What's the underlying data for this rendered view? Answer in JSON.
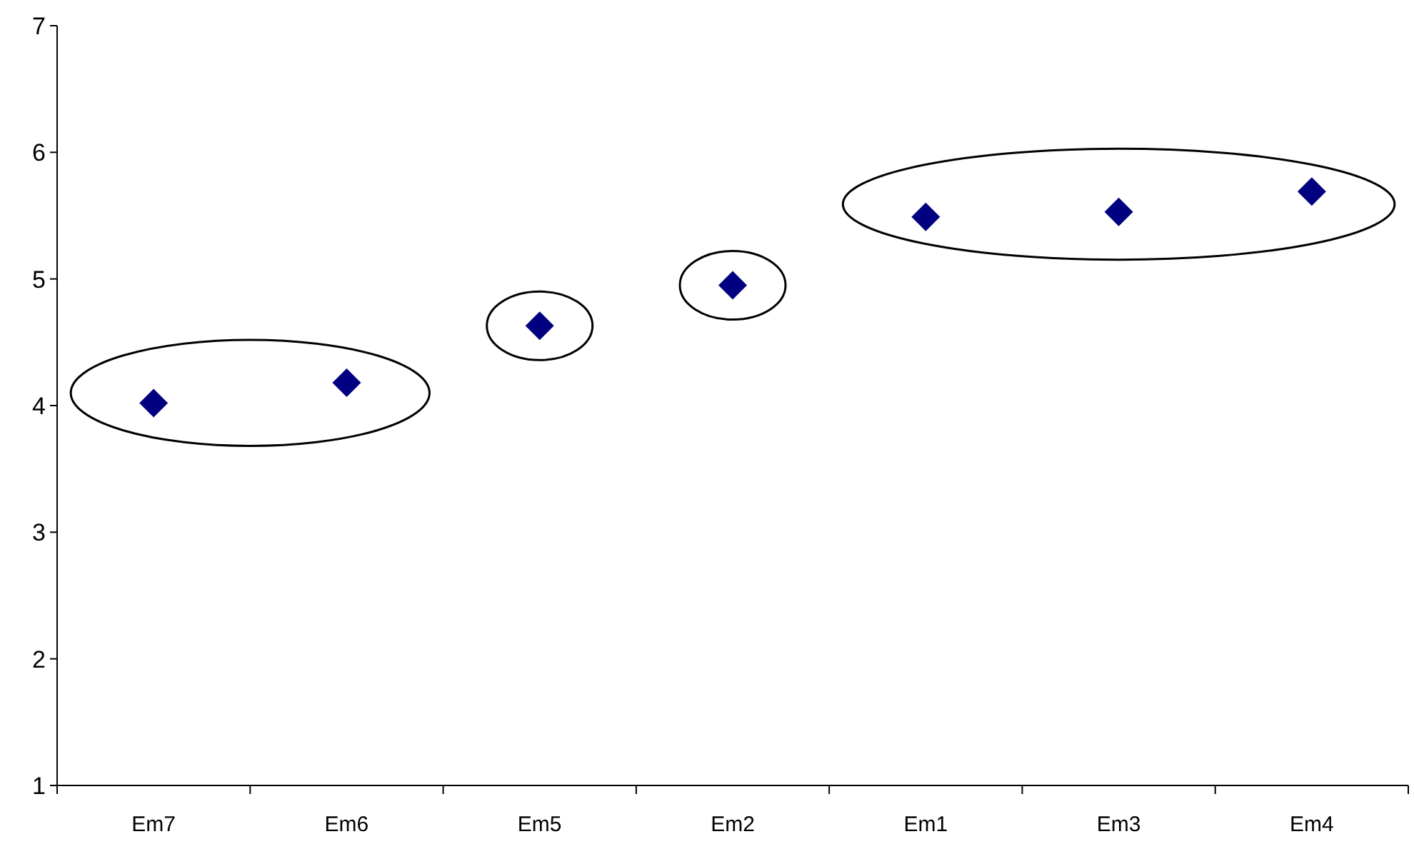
{
  "chart_data": {
    "type": "scatter",
    "categories": [
      "Em7",
      "Em6",
      "Em5",
      "Em2",
      "Em1",
      "Em3",
      "Em4"
    ],
    "values": [
      4.02,
      4.18,
      4.63,
      4.95,
      5.49,
      5.53,
      5.69
    ],
    "color": "#000080",
    "marker": "diamond",
    "ylim": [
      1,
      7
    ],
    "yticks": [
      1,
      2,
      3,
      4,
      5,
      6,
      7
    ]
  }
}
